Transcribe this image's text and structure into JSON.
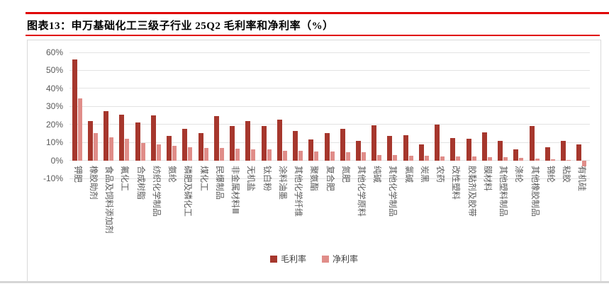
{
  "figure": {
    "title": "图表13：申万基础化工三级子行业 25Q2 毛利率和净利率（%）"
  },
  "colors": {
    "gross_bar": "#A6372D",
    "net_bar": "#E08D89",
    "title_rule_red": "#E00000",
    "axis_text": "#595959",
    "gridline": "#E3E3E3",
    "frame_border": "#D9D9D9",
    "legend_text": "#404040",
    "bottom_rule": "#D6D6D6",
    "title_text": "#000000"
  },
  "chart_data": {
    "type": "bar",
    "title": "申万基础化工三级子行业 25Q2 毛利率和净利率（%）",
    "categories": [
      "钾肥",
      "橡胶助剂",
      "食品及饲料添加剂",
      "氟化工",
      "合成树脂",
      "纺织化学制品",
      "氨纶",
      "磷肥及磷化工",
      "煤化工",
      "民爆制品",
      "非金属材料Ⅲ",
      "无机盐",
      "钛白粉",
      "涂料油墨",
      "其他化学纤维",
      "聚氨酯",
      "复合肥",
      "氮肥",
      "其他化学原料",
      "纯碱",
      "其他化学制品",
      "氯碱",
      "炭黑",
      "农药",
      "改性塑料",
      "胶黏剂及胶带",
      "膜材料",
      "其他塑料制品",
      "涤纶",
      "其他橡胶制品",
      "锦纶",
      "粘胶",
      "有机硅"
    ],
    "series": [
      {
        "name": "毛利率",
        "values": [
          56,
          22,
          27.5,
          25.5,
          21,
          25,
          13.5,
          17.5,
          15,
          24.5,
          19,
          22,
          19,
          22.5,
          16.5,
          11.5,
          15,
          17.5,
          11,
          19.5,
          13.5,
          14,
          9,
          20,
          12.5,
          12,
          15.5,
          11,
          6,
          19,
          7.5,
          11,
          9
        ]
      },
      {
        "name": "净利率",
        "values": [
          34.5,
          15,
          13,
          12,
          9.5,
          9,
          8,
          7.5,
          7,
          7,
          6.5,
          6,
          6,
          5.5,
          5.5,
          5,
          4.8,
          4.6,
          4.4,
          3,
          2.9,
          2.6,
          2.5,
          2.2,
          2.1,
          2,
          1.9,
          1.8,
          1.5,
          1,
          0.8,
          0.4,
          -3.5
        ]
      }
    ],
    "xlabel": "",
    "ylabel": "",
    "ylim": [
      -10,
      60
    ],
    "yticks": [
      60,
      50,
      40,
      30,
      20,
      10,
      0,
      -10
    ],
    "ytick_suffix": "%",
    "grid": true,
    "legend_position": "bottom"
  }
}
